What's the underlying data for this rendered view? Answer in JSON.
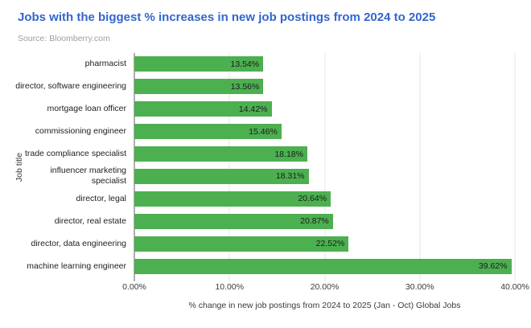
{
  "chart_data": {
    "type": "bar",
    "orientation": "horizontal",
    "title": "Jobs with the biggest % increases in new job postings from 2024 to 2025",
    "source": "Source: Bloomberry.com",
    "xlabel": "% change in new job postings from 2024 to 2025 (Jan - Oct) Global Jobs",
    "ylabel": "Job title",
    "categories": [
      "pharmacist",
      "director, software engineering",
      "mortgage loan officer",
      "commissioning engineer",
      "trade compliance specialist",
      "influencer marketing\nspecialist",
      "director, legal",
      "director, real estate",
      "director, data engineering",
      "machine learning engineer"
    ],
    "values": [
      13.54,
      13.56,
      14.42,
      15.46,
      18.18,
      18.31,
      20.64,
      20.87,
      22.52,
      39.62
    ],
    "value_labels": [
      "13.54%",
      "13.56%",
      "14.42%",
      "15.46%",
      "18.18%",
      "18.31%",
      "20.64%",
      "20.87%",
      "22.52%",
      "39.62%"
    ],
    "xlim": [
      0,
      40
    ],
    "xtick_labels": [
      "0.00%",
      "10.00%",
      "20.00%",
      "30.00%",
      "40.00%"
    ],
    "grid": "vertical-only",
    "legend": "none",
    "value_label_position": "inside-end",
    "colors": {
      "title": "#3366cc",
      "source": "#9e9e9e",
      "bar": "#4caf50",
      "gridline": "#e6e6e6",
      "baseline": "#5f5f5f",
      "category_text": "#212121",
      "value_text": "#1c1c1c",
      "axis_text": "#3a3a3a"
    }
  }
}
